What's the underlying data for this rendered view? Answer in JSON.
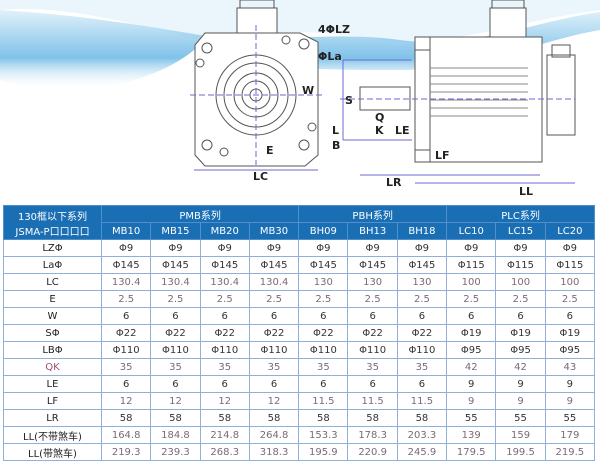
{
  "drawing": {
    "labels": {
      "lz": "4ΦLZ",
      "la": "ΦLa",
      "w": "W",
      "e": "E",
      "lc": "LC",
      "s": "S",
      "q": "Q",
      "k": "K",
      "l": "L",
      "b": "B",
      "le": "LE",
      "lf": "LF",
      "lr": "LR",
      "ll": "LL"
    },
    "colors": {
      "wave": "#1a8fd0",
      "line": "#555555",
      "dim": "#6a6ad0"
    }
  },
  "table": {
    "corner": [
      "130框以下系列",
      "JSMA-P口口口口"
    ],
    "groups": [
      {
        "label": "PMB系列",
        "span": 4
      },
      {
        "label": "PBH系列",
        "span": 3
      },
      {
        "label": "PLC系列",
        "span": 3
      }
    ],
    "models": [
      "MB10",
      "MB15",
      "MB20",
      "MB30",
      "BH09",
      "BH13",
      "BH18",
      "LC10",
      "LC15",
      "LC20"
    ],
    "rows": [
      {
        "name": "LZΦ",
        "values": [
          "Φ9",
          "Φ9",
          "Φ9",
          "Φ9",
          "Φ9",
          "Φ9",
          "Φ9",
          "Φ9",
          "Φ9",
          "Φ9"
        ]
      },
      {
        "name": "LaΦ",
        "values": [
          "Φ145",
          "Φ145",
          "Φ145",
          "Φ145",
          "Φ145",
          "Φ145",
          "Φ145",
          "Φ115",
          "Φ115",
          "Φ115"
        ]
      },
      {
        "name": "LC",
        "values": [
          "130.4",
          "130.4",
          "130.4",
          "130.4",
          "130",
          "130",
          "130",
          "100",
          "100",
          "100"
        ]
      },
      {
        "name": "E",
        "values": [
          "2.5",
          "2.5",
          "2.5",
          "2.5",
          "2.5",
          "2.5",
          "2.5",
          "2.5",
          "2.5",
          "2.5"
        ]
      },
      {
        "name": "W",
        "values": [
          "6",
          "6",
          "6",
          "6",
          "6",
          "6",
          "6",
          "6",
          "6",
          "6"
        ]
      },
      {
        "name": "SΦ",
        "values": [
          "Φ22",
          "Φ22",
          "Φ22",
          "Φ22",
          "Φ22",
          "Φ22",
          "Φ22",
          "Φ19",
          "Φ19",
          "Φ19"
        ]
      },
      {
        "name": "LBΦ",
        "values": [
          "Φ110",
          "Φ110",
          "Φ110",
          "Φ110",
          "Φ110",
          "Φ110",
          "Φ110",
          "Φ95",
          "Φ95",
          "Φ95"
        ]
      },
      {
        "name": "QK",
        "values": [
          "35",
          "35",
          "35",
          "35",
          "35",
          "35",
          "35",
          "42",
          "42",
          "43"
        ]
      },
      {
        "name": "LE",
        "values": [
          "6",
          "6",
          "6",
          "6",
          "6",
          "6",
          "6",
          "9",
          "9",
          "9"
        ]
      },
      {
        "name": "LF",
        "values": [
          "12",
          "12",
          "12",
          "12",
          "11.5",
          "11.5",
          "11.5",
          "9",
          "9",
          "9"
        ]
      },
      {
        "name": "LR",
        "values": [
          "58",
          "58",
          "58",
          "58",
          "58",
          "58",
          "58",
          "55",
          "55",
          "55"
        ]
      },
      {
        "name": "LL(不带煞车)",
        "values": [
          "164.8",
          "184.8",
          "214.8",
          "264.8",
          "153.3",
          "178.3",
          "203.3",
          "139",
          "159",
          "179"
        ]
      },
      {
        "name": "LL(带煞车)",
        "values": [
          "219.3",
          "239.3",
          "268.3",
          "318.3",
          "195.9",
          "220.9",
          "245.9",
          "179.5",
          "199.5",
          "219.5"
        ]
      }
    ]
  }
}
